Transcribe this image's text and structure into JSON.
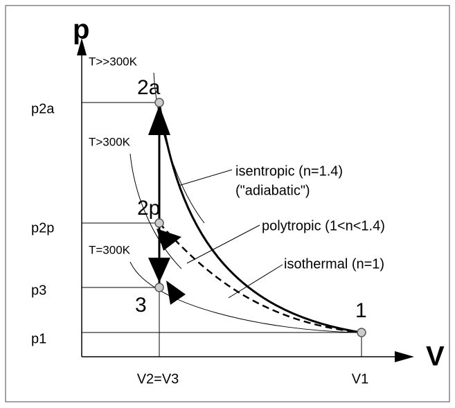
{
  "axes": {
    "y": "p",
    "x": "V"
  },
  "y_labels": [
    "p2a",
    "p2p",
    "p3",
    "p1"
  ],
  "x_labels": [
    "V2=V3",
    "V1"
  ],
  "points": [
    "2a",
    "2p",
    "3",
    "1"
  ],
  "temperatures": [
    "T>>300K",
    "T>300K",
    "T=300K"
  ],
  "curves": [
    "isentropic (n=1.4)",
    "(\"adiabatic\")",
    "polytropic (1<n<1.4)",
    "isothermal (n=1)"
  ]
}
